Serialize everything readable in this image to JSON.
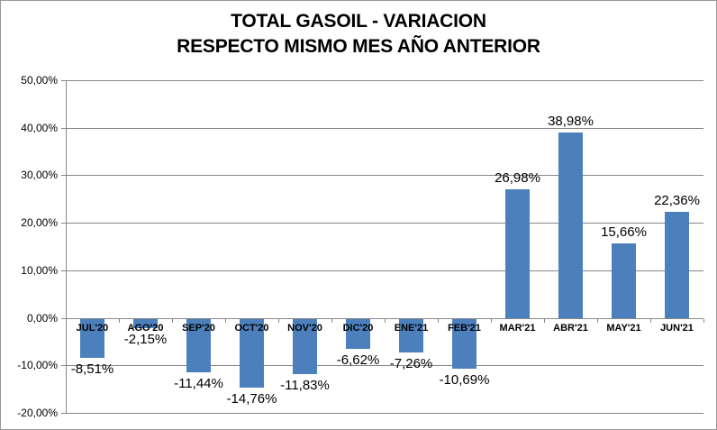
{
  "title": {
    "line1": "TOTAL GASOIL - VARIACION",
    "line2": "RESPECTO MISMO MES AÑO ANTERIOR"
  },
  "chart_data": {
    "type": "bar",
    "title": "TOTAL GASOIL - VARIACION RESPECTO MISMO MES AÑO ANTERIOR",
    "categories": [
      "JUL'20",
      "AGO'20",
      "SEP'20",
      "OCT'20",
      "NOV'20",
      "DIC'20",
      "ENE'21",
      "FEB'21",
      "MAR'21",
      "ABR'21",
      "MAY'21",
      "JUN'21"
    ],
    "values": [
      -8.51,
      -2.15,
      -11.44,
      -14.76,
      -11.83,
      -6.62,
      -7.26,
      -10.69,
      26.98,
      38.98,
      15.66,
      22.36
    ],
    "data_labels": [
      "-8,51%",
      "-2,15%",
      "-11,44%",
      "-14,76%",
      "-11,83%",
      "-6,62%",
      "-7,26%",
      "-10,69%",
      "26,98%",
      "38,98%",
      "15,66%",
      "22,36%"
    ],
    "xlabel": "",
    "ylabel": "",
    "ylim": [
      -20,
      50
    ],
    "ytick_values": [
      50,
      40,
      30,
      20,
      10,
      0,
      -10,
      -20
    ],
    "ytick_labels": [
      "50,00%",
      "40,00%",
      "30,00%",
      "20,00%",
      "10,00%",
      "0,00%",
      "-10,00%",
      "-20,00%"
    ],
    "grid": true,
    "legend": "none",
    "bar_color": "#4C80BD",
    "gridline_color": "#868686"
  }
}
